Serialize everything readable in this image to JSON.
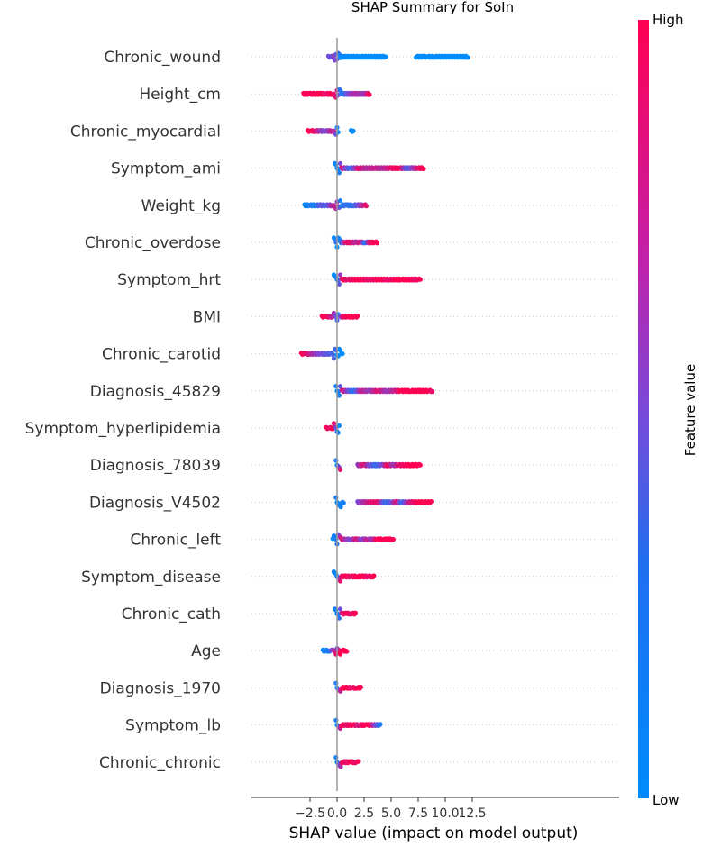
{
  "chart_data": {
    "type": "scatter",
    "subtype": "shap-beeswarm-summary",
    "title": "SHAP Summary for SoIn",
    "xlabel": "SHAP value (impact on model output)",
    "xlim": [
      -4,
      12.6
    ],
    "xticks": [
      -2.5,
      0.0,
      2.5,
      5.0,
      7.5,
      10.0,
      12.5
    ],
    "xtick_labels": [
      "−2.5",
      "0.0",
      "2.5",
      "5.0",
      "7.5",
      "10.0",
      "12.5"
    ],
    "colorbar": {
      "label": "Feature value",
      "high": "High",
      "low": "Low",
      "low_color": "#008bfb",
      "high_color": "#ff0052"
    },
    "features": [
      {
        "name": "Chronic_wound",
        "points": [
          [
            -0.8,
            0.5
          ],
          [
            -0.6,
            0.4
          ],
          [
            -0.4,
            0.5
          ],
          [
            -0.3,
            0.6
          ],
          [
            -0.2,
            0.5
          ],
          [
            -0.1,
            0.4
          ],
          [
            0.0,
            0.5
          ],
          [
            0.1,
            0.3
          ],
          [
            0.3,
            0.0
          ],
          [
            1.0,
            0.0
          ],
          [
            2.0,
            0.0
          ],
          [
            3.0,
            0.0
          ],
          [
            4.0,
            0.0
          ],
          [
            4.5,
            0.0
          ],
          [
            7.3,
            0.0
          ],
          [
            8.1,
            0.0
          ],
          [
            8.4,
            0.0
          ],
          [
            9.0,
            0.0
          ],
          [
            10.0,
            0.0
          ],
          [
            11.0,
            0.0
          ],
          [
            12.1,
            0.0
          ]
        ]
      },
      {
        "name": "Height_cm",
        "points": [
          [
            -3.1,
            1.0
          ],
          [
            -2.5,
            1.0
          ],
          [
            -2.0,
            1.0
          ],
          [
            -1.5,
            1.0
          ],
          [
            -1.0,
            0.9
          ],
          [
            -0.5,
            1.0
          ],
          [
            -0.2,
            0.9
          ],
          [
            0.0,
            0.8
          ],
          [
            0.1,
            0.5
          ],
          [
            0.2,
            0.2
          ],
          [
            0.5,
            0.1
          ],
          [
            1.2,
            0.6
          ],
          [
            1.8,
            0.7
          ],
          [
            2.5,
            0.6
          ],
          [
            3.0,
            1.0
          ]
        ]
      },
      {
        "name": "Chronic_myocardial",
        "points": [
          [
            -2.7,
            1.0
          ],
          [
            -2.4,
            1.0
          ],
          [
            -2.0,
            0.9
          ],
          [
            -1.5,
            0.6
          ],
          [
            -1.0,
            0.5
          ],
          [
            -0.5,
            0.8
          ],
          [
            -0.2,
            0.7
          ],
          [
            0.0,
            0.1
          ],
          [
            0.1,
            0.0
          ],
          [
            1.3,
            0.0
          ],
          [
            1.5,
            0.0
          ]
        ]
      },
      {
        "name": "Symptom_ami",
        "points": [
          [
            -0.2,
            0.1
          ],
          [
            0.0,
            0.0
          ],
          [
            0.2,
            0.1
          ],
          [
            0.4,
            0.9
          ],
          [
            1.2,
            0.2
          ],
          [
            2.0,
            0.9
          ],
          [
            2.7,
            0.7
          ],
          [
            3.5,
            0.8
          ],
          [
            4.2,
            0.7
          ],
          [
            5.0,
            0.9
          ],
          [
            5.8,
            1.0
          ],
          [
            6.5,
            0.3
          ],
          [
            7.0,
            0.6
          ],
          [
            7.5,
            0.9
          ],
          [
            8.0,
            1.0
          ]
        ]
      },
      {
        "name": "Weight_kg",
        "points": [
          [
            -3.0,
            0.0
          ],
          [
            -2.5,
            0.1
          ],
          [
            -2.0,
            0.1
          ],
          [
            -1.5,
            0.4
          ],
          [
            -1.0,
            0.3
          ],
          [
            -0.5,
            0.7
          ],
          [
            -0.2,
            0.8
          ],
          [
            0.0,
            0.6
          ],
          [
            0.1,
            0.8
          ],
          [
            0.3,
            0.1
          ],
          [
            0.9,
            0.2
          ],
          [
            1.5,
            0.2
          ],
          [
            2.0,
            0.5
          ],
          [
            2.5,
            0.8
          ],
          [
            2.7,
            0.9
          ]
        ]
      },
      {
        "name": "Chronic_overdose",
        "points": [
          [
            -0.3,
            0.0
          ],
          [
            -0.1,
            0.2
          ],
          [
            0.0,
            0.0
          ],
          [
            0.3,
            0.1
          ],
          [
            0.8,
            0.9
          ],
          [
            1.3,
            0.9
          ],
          [
            1.8,
            0.7
          ],
          [
            2.2,
            0.9
          ],
          [
            2.6,
            0.1
          ],
          [
            3.0,
            0.9
          ],
          [
            3.5,
            1.0
          ],
          [
            3.7,
            1.0
          ]
        ]
      },
      {
        "name": "Symptom_hrt",
        "points": [
          [
            -0.3,
            0.0
          ],
          [
            0.0,
            0.1
          ],
          [
            0.2,
            0.4
          ],
          [
            0.5,
            1.0
          ],
          [
            1.0,
            0.9
          ],
          [
            2.0,
            1.0
          ],
          [
            3.0,
            0.9
          ],
          [
            4.0,
            1.0
          ],
          [
            4.8,
            0.9
          ],
          [
            5.5,
            1.0
          ],
          [
            6.0,
            1.0
          ],
          [
            6.7,
            1.0
          ],
          [
            7.3,
            0.9
          ],
          [
            7.7,
            1.0
          ]
        ]
      },
      {
        "name": "BMI",
        "points": [
          [
            -1.4,
            1.0
          ],
          [
            -1.0,
            1.0
          ],
          [
            -0.5,
            0.8
          ],
          [
            -0.2,
            0.6
          ],
          [
            0.0,
            0.3
          ],
          [
            0.1,
            0.0
          ],
          [
            0.5,
            0.9
          ],
          [
            1.0,
            1.0
          ],
          [
            1.5,
            1.0
          ],
          [
            1.9,
            1.0
          ]
        ]
      },
      {
        "name": "Chronic_carotid",
        "points": [
          [
            -3.3,
            1.0
          ],
          [
            -2.9,
            0.9
          ],
          [
            -2.5,
            0.8
          ],
          [
            -2.0,
            0.6
          ],
          [
            -1.5,
            0.5
          ],
          [
            -1.0,
            0.4
          ],
          [
            -0.5,
            0.3
          ],
          [
            -0.1,
            0.3
          ],
          [
            0.0,
            0.0
          ],
          [
            0.2,
            0.0
          ],
          [
            0.5,
            0.0
          ]
        ]
      },
      {
        "name": "Diagnosis_45829",
        "points": [
          [
            -0.1,
            0.1
          ],
          [
            0.0,
            0.0
          ],
          [
            0.2,
            0.1
          ],
          [
            0.5,
            0.9
          ],
          [
            1.5,
            0.1
          ],
          [
            2.2,
            0.8
          ],
          [
            3.0,
            0.6
          ],
          [
            3.8,
            0.9
          ],
          [
            4.6,
            0.6
          ],
          [
            5.4,
            0.8
          ],
          [
            5.9,
            1.0
          ],
          [
            6.8,
            1.0
          ],
          [
            7.7,
            1.0
          ],
          [
            8.5,
            1.0
          ],
          [
            8.8,
            0.9
          ]
        ]
      },
      {
        "name": "Symptom_hyperlipidemia",
        "points": [
          [
            -1.0,
            1.0
          ],
          [
            -0.7,
            0.9
          ],
          [
            -0.4,
            1.0
          ],
          [
            -0.2,
            0.8
          ],
          [
            0.0,
            0.1
          ],
          [
            0.2,
            0.0
          ]
        ]
      },
      {
        "name": "Diagnosis_78039",
        "points": [
          [
            -0.1,
            0.1
          ],
          [
            0.0,
            0.0
          ],
          [
            0.3,
            0.9
          ],
          [
            1.9,
            0.6
          ],
          [
            2.5,
            0.9
          ],
          [
            3.0,
            0.5
          ],
          [
            3.6,
            0.2
          ],
          [
            4.2,
            0.5
          ],
          [
            4.7,
            1.0
          ],
          [
            5.2,
            0.6
          ],
          [
            5.7,
            0.9
          ],
          [
            6.8,
            1.0
          ],
          [
            7.3,
            1.0
          ],
          [
            7.7,
            1.0
          ]
        ]
      },
      {
        "name": "Diagnosis_V4502",
        "points": [
          [
            -0.1,
            0.1
          ],
          [
            0.0,
            0.0
          ],
          [
            0.6,
            0.1
          ],
          [
            1.9,
            0.5
          ],
          [
            2.5,
            0.7
          ],
          [
            3.2,
            0.9
          ],
          [
            3.8,
            0.9
          ],
          [
            4.5,
            0.2
          ],
          [
            5.0,
            0.4
          ],
          [
            5.5,
            0.9
          ],
          [
            6.0,
            0.2
          ],
          [
            6.5,
            0.7
          ],
          [
            7.0,
            0.9
          ],
          [
            7.5,
            1.0
          ],
          [
            8.0,
            1.0
          ],
          [
            8.7,
            1.0
          ]
        ]
      },
      {
        "name": "Chronic_left",
        "points": [
          [
            -0.4,
            0.0
          ],
          [
            -0.1,
            0.1
          ],
          [
            0.0,
            0.2
          ],
          [
            0.4,
            0.9
          ],
          [
            0.9,
            0.6
          ],
          [
            1.3,
            0.5
          ],
          [
            1.8,
            0.9
          ],
          [
            2.3,
            0.5
          ],
          [
            2.8,
            0.8
          ],
          [
            3.2,
            0.6
          ],
          [
            3.7,
            1.0
          ],
          [
            4.3,
            1.0
          ],
          [
            4.9,
            1.0
          ],
          [
            5.2,
            1.0
          ]
        ]
      },
      {
        "name": "Symptom_disease",
        "points": [
          [
            -0.3,
            0.1
          ],
          [
            0.0,
            0.0
          ],
          [
            0.3,
            0.9
          ],
          [
            0.8,
            1.0
          ],
          [
            1.3,
            0.9
          ],
          [
            1.9,
            1.0
          ],
          [
            2.4,
            1.0
          ],
          [
            2.9,
            0.9
          ],
          [
            3.3,
            1.0
          ],
          [
            3.4,
            1.0
          ]
        ]
      },
      {
        "name": "Chronic_cath",
        "points": [
          [
            -0.2,
            0.1
          ],
          [
            0.0,
            0.0
          ],
          [
            0.2,
            0.2
          ],
          [
            0.5,
            0.9
          ],
          [
            0.9,
            1.0
          ],
          [
            1.3,
            0.9
          ],
          [
            1.7,
            1.0
          ]
        ]
      },
      {
        "name": "Age",
        "points": [
          [
            -1.3,
            0.0
          ],
          [
            -1.1,
            0.1
          ],
          [
            -0.7,
            0.1
          ],
          [
            -0.4,
            0.6
          ],
          [
            -0.1,
            0.9
          ],
          [
            0.0,
            0.5
          ],
          [
            0.2,
            1.0
          ],
          [
            0.5,
            1.0
          ],
          [
            0.9,
            1.0
          ]
        ]
      },
      {
        "name": "Diagnosis_1970",
        "points": [
          [
            -0.1,
            0.1
          ],
          [
            0.0,
            0.0
          ],
          [
            0.4,
            1.0
          ],
          [
            0.9,
            1.0
          ],
          [
            1.4,
            0.9
          ],
          [
            1.8,
            1.0
          ],
          [
            2.2,
            1.0
          ]
        ]
      },
      {
        "name": "Symptom_lb",
        "points": [
          [
            -0.1,
            0.1
          ],
          [
            0.0,
            0.0
          ],
          [
            0.4,
            1.0
          ],
          [
            1.0,
            0.9
          ],
          [
            1.5,
            1.0
          ],
          [
            2.0,
            0.8
          ],
          [
            2.4,
            1.0
          ],
          [
            2.8,
            1.0
          ],
          [
            3.0,
            1.0
          ],
          [
            4.0,
            0.1
          ]
        ]
      },
      {
        "name": "Chronic_chronic",
        "points": [
          [
            -0.1,
            0.1
          ],
          [
            0.0,
            0.0
          ],
          [
            0.5,
            1.0
          ],
          [
            0.9,
            0.9
          ],
          [
            1.3,
            1.0
          ],
          [
            1.7,
            0.9
          ],
          [
            2.0,
            1.0
          ]
        ]
      }
    ]
  }
}
